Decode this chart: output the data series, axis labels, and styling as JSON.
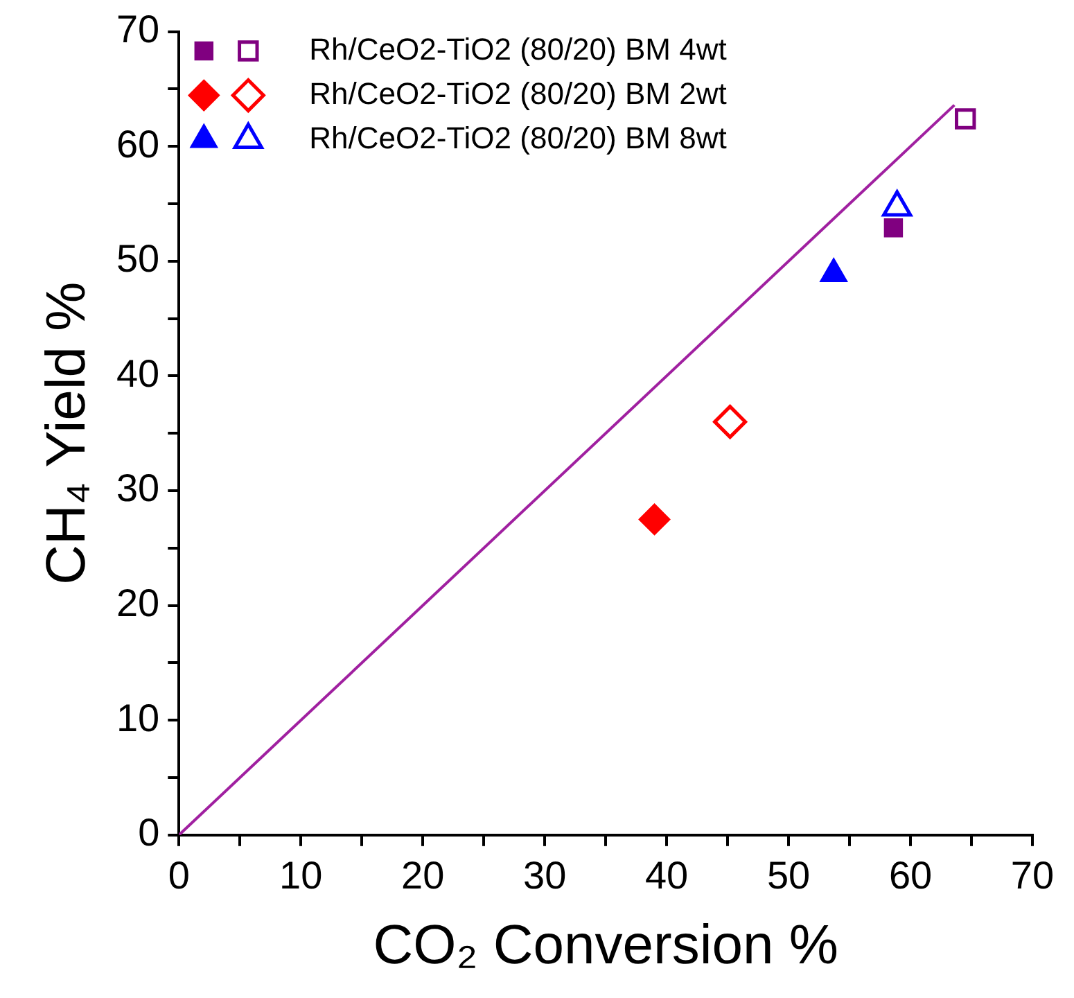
{
  "chart_data": {
    "type": "scatter",
    "xlabel": "CO₂ Conversion %",
    "ylabel": "CH₄ Yield %",
    "xlim": [
      0,
      70
    ],
    "ylim": [
      0,
      70
    ],
    "xticks": [
      0,
      {
        "value": 5,
        "label": null
      },
      10,
      {
        "value": 15,
        "label": null
      },
      20,
      {
        "value": 25,
        "label": null
      },
      30,
      {
        "value": 35,
        "label": null
      },
      40,
      {
        "value": 45,
        "label": null
      },
      50,
      {
        "value": 55,
        "label": null
      },
      60,
      {
        "value": 65,
        "label": null
      },
      70
    ],
    "yticks": [
      0,
      {
        "value": 5,
        "label": null
      },
      10,
      {
        "value": 15,
        "label": null
      },
      20,
      {
        "value": 25,
        "label": null
      },
      30,
      {
        "value": 35,
        "label": null
      },
      40,
      {
        "value": 45,
        "label": null
      },
      50,
      {
        "value": 55,
        "label": null
      },
      60,
      {
        "value": 65,
        "label": null
      },
      70
    ],
    "grid": false,
    "legend": "top left",
    "series": [
      {
        "name": "Rh/CeO2-TiO2 (80/20) BM 4wt",
        "color": "#800080",
        "marker": "square",
        "x": [
          58.6
        ],
        "values": [
          52.9
        ]
      },
      {
        "color": "#800080",
        "marker": "square",
        "x": [
          64.5
        ],
        "values": [
          62.4
        ]
      },
      {
        "name": "Rh/CeO2-TiO2 (80/20) BM 2wt",
        "color": "#ff0000",
        "marker": "diamond",
        "x": [
          39.0
        ],
        "values": [
          27.5
        ]
      },
      {
        "color": "#ff0000",
        "marker": "diamond",
        "x": [
          45.2
        ],
        "values": [
          36.0
        ]
      },
      {
        "name": "Rh/CeO2-TiO2 (80/20) BM 8wt",
        "color": "#0000ff",
        "marker": "triangle",
        "x": [
          53.7
        ],
        "values": [
          48.9
        ]
      },
      {
        "color": "#0000ff",
        "marker": "triangle",
        "x": [
          58.9
        ],
        "values": [
          54.7
        ]
      },
      {
        "type": "line",
        "color": "#a020a0",
        "marker": "none",
        "line_style": "solid",
        "x": [
          0,
          63.6
        ],
        "values": [
          0,
          63.6
        ]
      }
    ]
  }
}
